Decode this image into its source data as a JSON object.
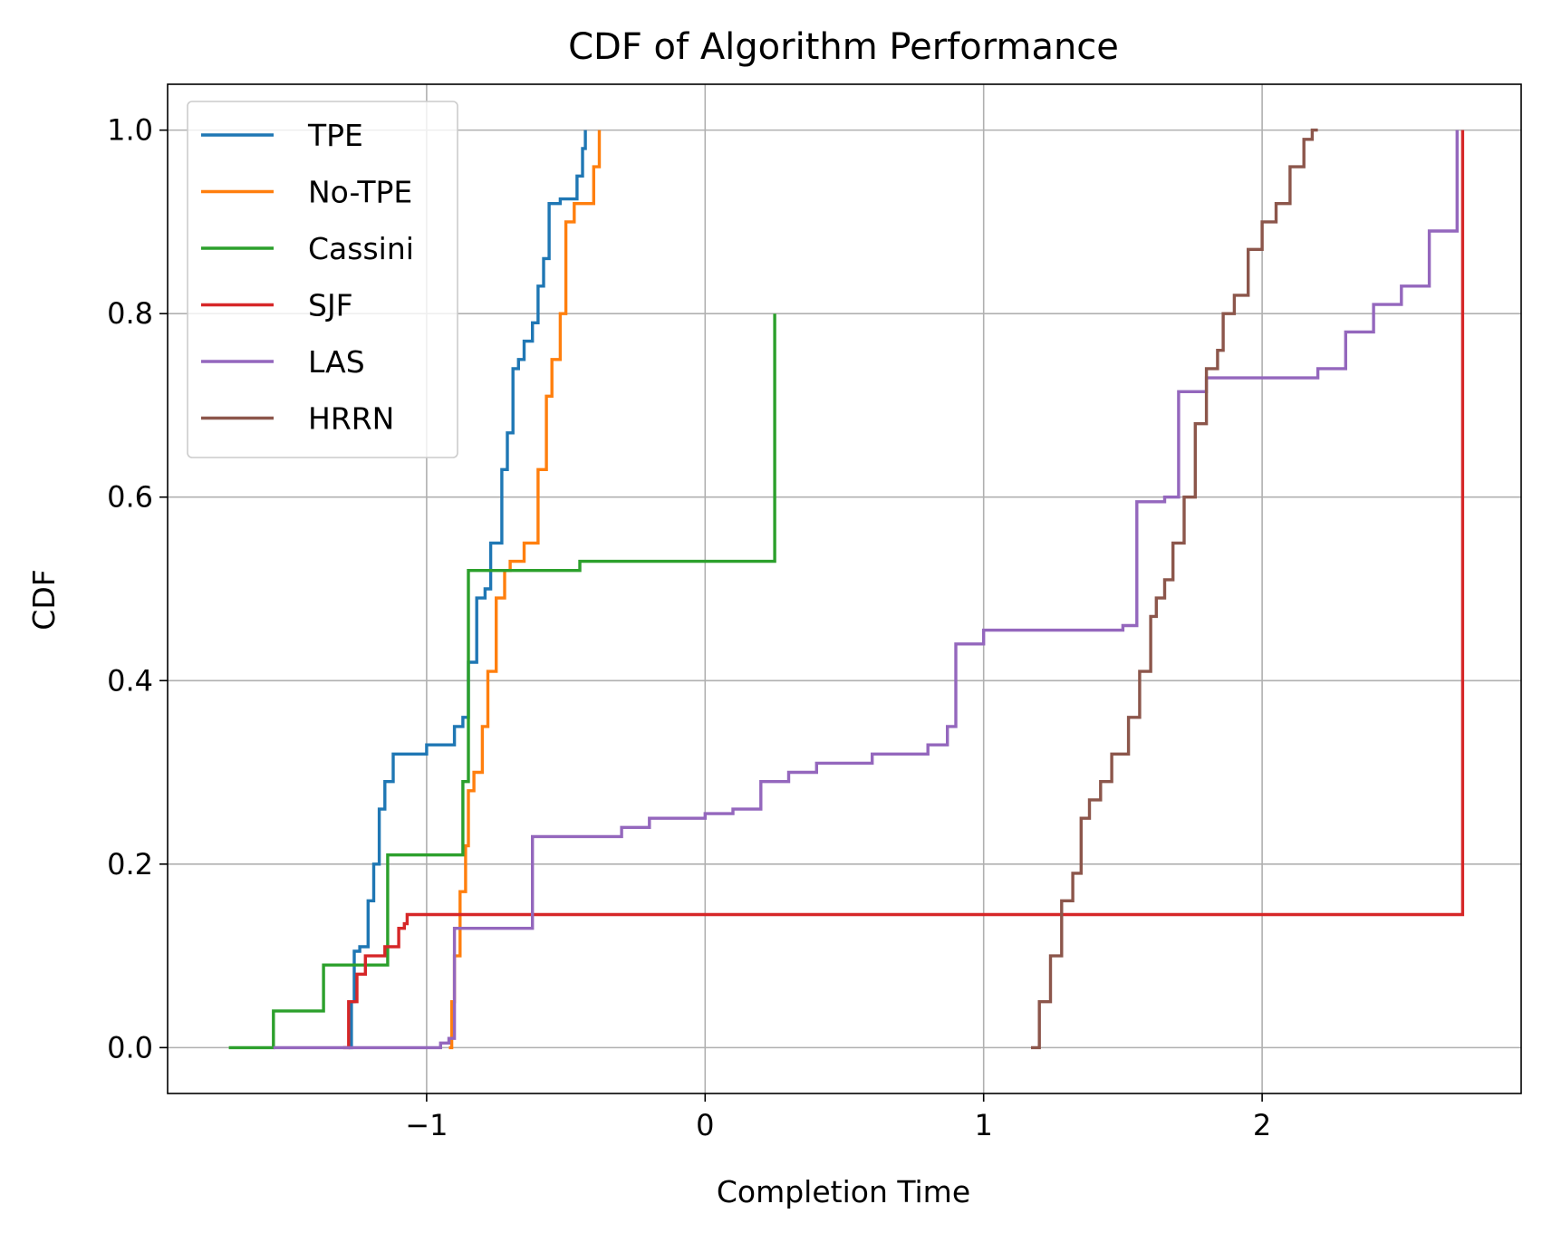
{
  "chart_data": {
    "type": "line",
    "title": "CDF of Algorithm Performance",
    "xlabel": "Completion Time",
    "ylabel": "CDF",
    "xlim": [
      -1.93,
      2.93
    ],
    "ylim": [
      -0.05,
      1.05
    ],
    "xticks": [
      -1,
      0,
      1,
      2
    ],
    "xtick_labels": [
      "−1",
      "0",
      "1",
      "2"
    ],
    "yticks": [
      0.0,
      0.2,
      0.4,
      0.6,
      0.8,
      1.0
    ],
    "ytick_labels": [
      "0.0",
      "0.2",
      "0.4",
      "0.6",
      "0.8",
      "1.0"
    ],
    "grid": true,
    "legend_position": "top-left",
    "series": [
      {
        "name": "TPE",
        "color": "#1f77b4",
        "x": [
          -1.28,
          -1.27,
          -1.26,
          -1.24,
          -1.21,
          -1.19,
          -1.17,
          -1.15,
          -1.12,
          -1.0,
          -0.9,
          -0.87,
          -0.85,
          -0.82,
          -0.79,
          -0.77,
          -0.73,
          -0.71,
          -0.69,
          -0.67,
          -0.65,
          -0.62,
          -0.6,
          -0.58,
          -0.56,
          -0.52,
          -0.46,
          -0.44,
          -0.43
        ],
        "y": [
          0.0,
          0.05,
          0.105,
          0.11,
          0.16,
          0.2,
          0.26,
          0.29,
          0.32,
          0.33,
          0.35,
          0.36,
          0.42,
          0.49,
          0.5,
          0.55,
          0.63,
          0.67,
          0.74,
          0.75,
          0.77,
          0.79,
          0.83,
          0.86,
          0.92,
          0.925,
          0.95,
          0.98,
          1.0
        ]
      },
      {
        "name": "No-TPE",
        "color": "#ff7f0e",
        "x": [
          -0.92,
          -0.91,
          -0.9,
          -0.88,
          -0.86,
          -0.85,
          -0.83,
          -0.8,
          -0.78,
          -0.75,
          -0.72,
          -0.7,
          -0.65,
          -0.6,
          -0.57,
          -0.55,
          -0.52,
          -0.5,
          -0.47,
          -0.4,
          -0.38
        ],
        "y": [
          0.0,
          0.05,
          0.1,
          0.17,
          0.22,
          0.28,
          0.3,
          0.35,
          0.41,
          0.49,
          0.52,
          0.53,
          0.55,
          0.63,
          0.71,
          0.75,
          0.8,
          0.9,
          0.92,
          0.96,
          1.0
        ]
      },
      {
        "name": "Cassini",
        "color": "#2ca02c",
        "x": [
          -1.71,
          -1.55,
          -1.37,
          -1.14,
          -0.87,
          -0.85,
          -0.45,
          0.25
        ],
        "y": [
          0.0,
          0.04,
          0.09,
          0.21,
          0.29,
          0.52,
          0.53,
          0.8
        ]
      },
      {
        "name": "SJF",
        "color": "#d62728",
        "x": [
          -1.3,
          -1.28,
          -1.25,
          -1.22,
          -1.15,
          -1.1,
          -1.08,
          -1.07,
          2.72
        ],
        "y": [
          0.0,
          0.05,
          0.08,
          0.1,
          0.11,
          0.13,
          0.135,
          0.145,
          1.0
        ]
      },
      {
        "name": "LAS",
        "color": "#9467bd",
        "x": [
          -1.55,
          -0.95,
          -0.92,
          -0.9,
          -0.62,
          -0.3,
          -0.2,
          0.0,
          0.1,
          0.2,
          0.3,
          0.4,
          0.6,
          0.8,
          0.87,
          0.9,
          1.0,
          1.5,
          1.55,
          1.65,
          1.7,
          1.8,
          2.2,
          2.3,
          2.4,
          2.5,
          2.6,
          2.7
        ],
        "y": [
          0.0,
          0.005,
          0.01,
          0.13,
          0.23,
          0.24,
          0.25,
          0.255,
          0.26,
          0.29,
          0.3,
          0.31,
          0.32,
          0.33,
          0.35,
          0.44,
          0.455,
          0.46,
          0.595,
          0.6,
          0.715,
          0.73,
          0.74,
          0.78,
          0.81,
          0.83,
          0.89,
          1.0
        ]
      },
      {
        "name": "HRRN",
        "color": "#8c564b",
        "x": [
          1.17,
          1.2,
          1.24,
          1.28,
          1.32,
          1.35,
          1.38,
          1.42,
          1.46,
          1.52,
          1.56,
          1.6,
          1.62,
          1.65,
          1.68,
          1.72,
          1.76,
          1.8,
          1.84,
          1.86,
          1.9,
          1.95,
          2.0,
          2.05,
          2.1,
          2.15,
          2.18,
          2.2
        ],
        "y": [
          0.0,
          0.05,
          0.1,
          0.16,
          0.19,
          0.25,
          0.27,
          0.29,
          0.32,
          0.36,
          0.41,
          0.47,
          0.49,
          0.51,
          0.55,
          0.6,
          0.68,
          0.74,
          0.76,
          0.8,
          0.82,
          0.87,
          0.9,
          0.92,
          0.96,
          0.99,
          1.0,
          1.0
        ]
      }
    ]
  }
}
